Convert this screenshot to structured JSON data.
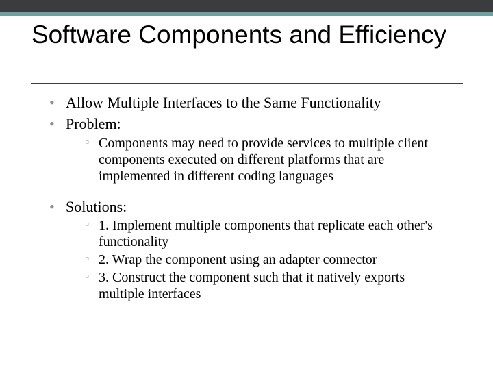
{
  "colors": {
    "bar_top": "#3b3c3d",
    "bar_accent": "#6fa0a1",
    "bullet_l1": "#8f8f8f",
    "bullet_l2": "#b0b0b0",
    "rule": "#3b3c3d",
    "rule_lower": "#cfcfcf",
    "background": "#ffffff",
    "text": "#000000"
  },
  "title": "Software Components and Efficiency",
  "bullets": {
    "b1": "Allow Multiple Interfaces to the Same Functionality",
    "b2": "Problem:",
    "b2_sub1": "Components may need to provide services to multiple client components executed on different platforms that are implemented in different coding languages",
    "b3": "Solutions:",
    "b3_sub1": "1.  Implement multiple components that replicate each other's functionality",
    "b3_sub2": "2.  Wrap the component using an adapter connector",
    "b3_sub3": "3.  Construct  the component such that it natively exports multiple interfaces"
  }
}
